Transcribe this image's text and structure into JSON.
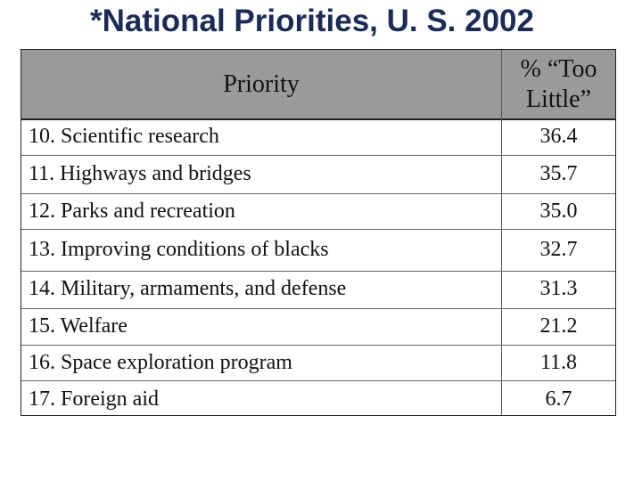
{
  "title": "*National Priorities, U. S. 2002",
  "table": {
    "headers": {
      "priority": "Priority",
      "percent_line1": "% “Too",
      "percent_line2": "Little”"
    },
    "rows": [
      {
        "label": "10. Scientific research",
        "value": "36.4"
      },
      {
        "label": "11. Highways and bridges",
        "value": "35.7"
      },
      {
        "label": "12. Parks and recreation",
        "value": "35.0"
      },
      {
        "label": "13. Improving conditions of blacks",
        "value": "32.7"
      },
      {
        "label": "14. Military, armaments, and defense",
        "value": "31.3"
      },
      {
        "label": "15. Welfare",
        "value": "21.2"
      },
      {
        "label": "16. Space exploration program",
        "value": "11.8"
      },
      {
        "label": "17. Foreign aid",
        "value": "6.7"
      }
    ]
  }
}
